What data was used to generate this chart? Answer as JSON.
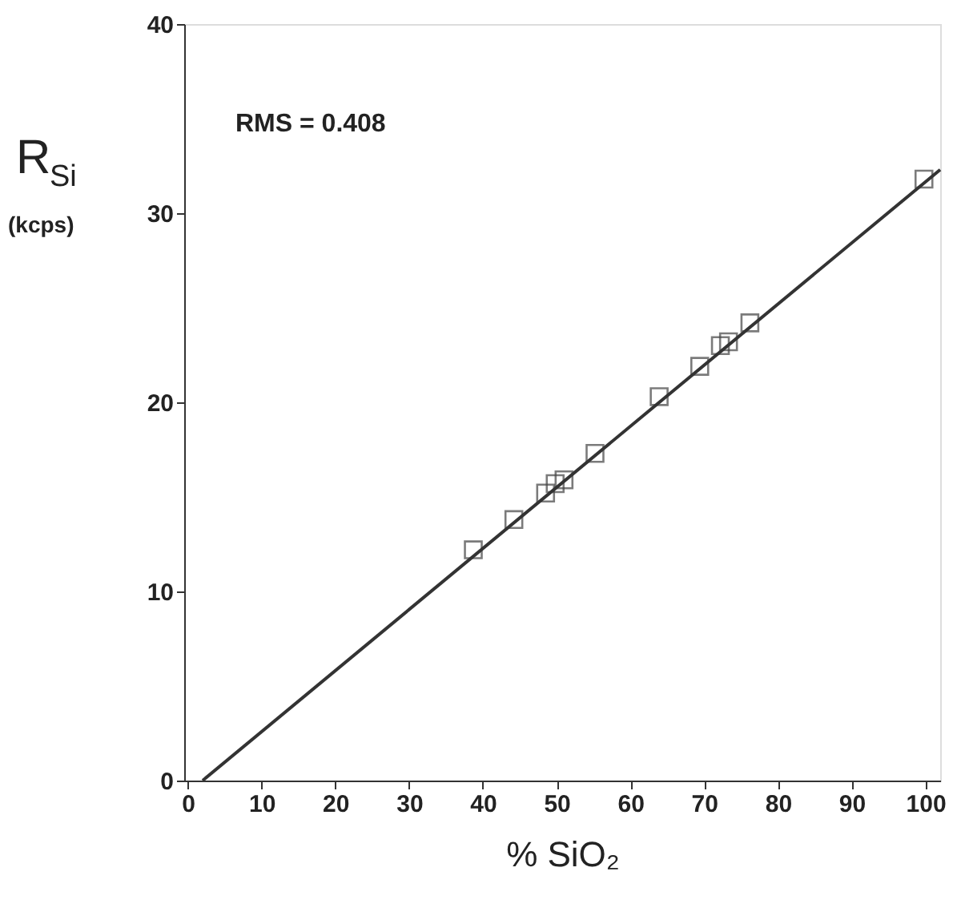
{
  "chart_data": {
    "type": "scatter",
    "xlabel": "% SiO₂",
    "ylabel": "R$_{Si}$ (kcps)",
    "annotations": [
      "RMS = 0.408"
    ],
    "xlim": [
      -0.5,
      102
    ],
    "ylim": [
      0,
      40
    ],
    "xticks": [
      0,
      10,
      20,
      30,
      40,
      50,
      60,
      70,
      80,
      90,
      100
    ],
    "yticks": [
      0,
      10,
      20,
      30,
      40
    ],
    "grid": false,
    "series": [
      {
        "color": "#444444",
        "marker": "square",
        "x": [
          38.7,
          44.2,
          48.5,
          49.8,
          51.0,
          55.2,
          63.9,
          69.4,
          72.2,
          73.3,
          76.2,
          99.8
        ],
        "values": [
          12.2,
          13.8,
          15.2,
          15.7,
          15.9,
          17.3,
          20.3,
          21.9,
          23.0,
          23.2,
          24.2,
          31.8
        ]
      },
      {
        "type": "line",
        "color": "#333333",
        "line_style": "solid",
        "x": [
          2,
          102
        ],
        "values": [
          0,
          32.3
        ]
      }
    ]
  }
}
